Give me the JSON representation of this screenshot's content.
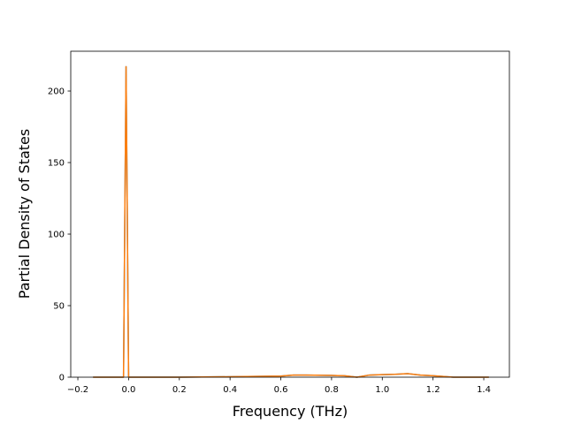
{
  "chart_data": {
    "type": "line",
    "x_label": "Frequency (THz)",
    "y_label": "Partial Density of States",
    "x": [
      -0.14,
      -0.03,
      -0.02,
      -0.01,
      0.0,
      0.01,
      0.2,
      0.4,
      0.6,
      0.65,
      0.7,
      0.8,
      0.85,
      0.9,
      0.95,
      1.0,
      1.05,
      1.1,
      1.15,
      1.2,
      1.28,
      1.35,
      1.42
    ],
    "series": [
      {
        "color": "#1f77b4",
        "values": [
          0,
          0,
          0,
          217,
          0,
          0,
          0,
          0.3,
          0.8,
          1.5,
          1.5,
          1.2,
          1.0,
          0,
          1.5,
          1.8,
          2.0,
          2.5,
          1.5,
          1.0,
          0,
          0,
          0
        ]
      },
      {
        "color": "#ff7f0e",
        "values": [
          0,
          0,
          0,
          217,
          0,
          0,
          0,
          0.3,
          0.8,
          1.5,
          1.5,
          1.2,
          1.0,
          0,
          1.5,
          1.8,
          2.0,
          2.5,
          1.5,
          1.0,
          0,
          0,
          0
        ]
      }
    ],
    "xlim": [
      -0.228,
      1.501
    ],
    "ylim": [
      0,
      227.8
    ],
    "xticks": [
      {
        "value": -0.2,
        "label": "−0.2"
      },
      {
        "value": 0.0,
        "label": "0.0"
      },
      {
        "value": 0.2,
        "label": "0.2"
      },
      {
        "value": 0.4,
        "label": "0.4"
      },
      {
        "value": 0.6,
        "label": "0.6"
      },
      {
        "value": 0.8,
        "label": "0.8"
      },
      {
        "value": 1.0,
        "label": "1.0"
      },
      {
        "value": 1.2,
        "label": "1.2"
      },
      {
        "value": 1.4,
        "label": "1.4"
      }
    ],
    "yticks": [
      0,
      50,
      100,
      150,
      200
    ],
    "grid": false
  }
}
